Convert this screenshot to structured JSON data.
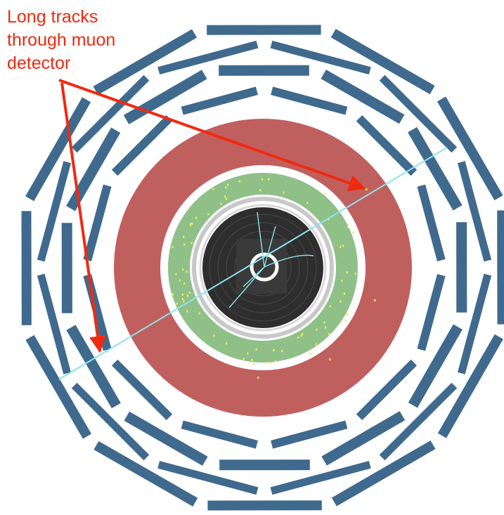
{
  "annotation": {
    "lines": [
      "Long tracks",
      "through muon",
      "detector"
    ]
  },
  "colors": {
    "background": "#ffffff",
    "muon_chambers": "#3f6a8e",
    "calorimeter_red": "#c0605e",
    "calorimeter_green": "#8fc088",
    "tracker_dark": "#2e2e2e",
    "tracker_rings": "#c8c8c8",
    "muon_track": "#8de4ec",
    "hits": "#f2ec5a",
    "annotation": "#f02a10"
  },
  "icons": {
    "arrow_upper": "arrow-to-upper-right-track-exit",
    "arrow_lower": "arrow-to-lower-left-track-exit"
  }
}
